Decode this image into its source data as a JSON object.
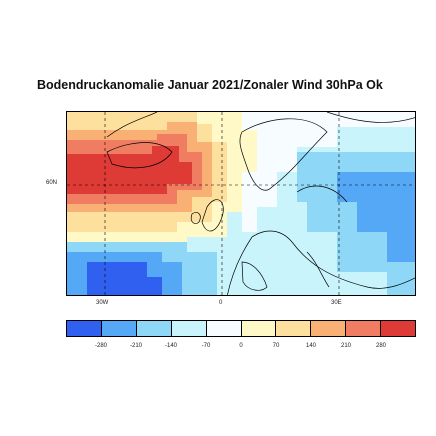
{
  "title": "Bodendruckanomalie Januar 2021/Zonaler Wind 30hPa Ok",
  "map": {
    "lat_labels": [
      "60N"
    ],
    "lon_labels": [
      "30W",
      "0",
      "30E"
    ],
    "colors": {
      "deep_blue": "#3060f0",
      "mid_blue": "#55a8f5",
      "light_blue": "#8ed7f7",
      "pale_cyan": "#caf4fb",
      "near_white": "#f6fcff",
      "pale_yellow": "#fff9c8",
      "light_orange": "#fde09e",
      "orange": "#f9b075",
      "salmon": "#f07d62",
      "red": "#de3a36"
    }
  },
  "legend": {
    "colors": [
      "#3060f0",
      "#55a8f5",
      "#8ed7f7",
      "#caf4fb",
      "#f6fcff",
      "#fff9c8",
      "#fde09e",
      "#f9b075",
      "#f07d62",
      "#de3a36"
    ],
    "ticks": [
      "-280",
      "-210",
      "-140",
      "-70",
      "0",
      "70",
      "140",
      "210",
      "280"
    ]
  }
}
